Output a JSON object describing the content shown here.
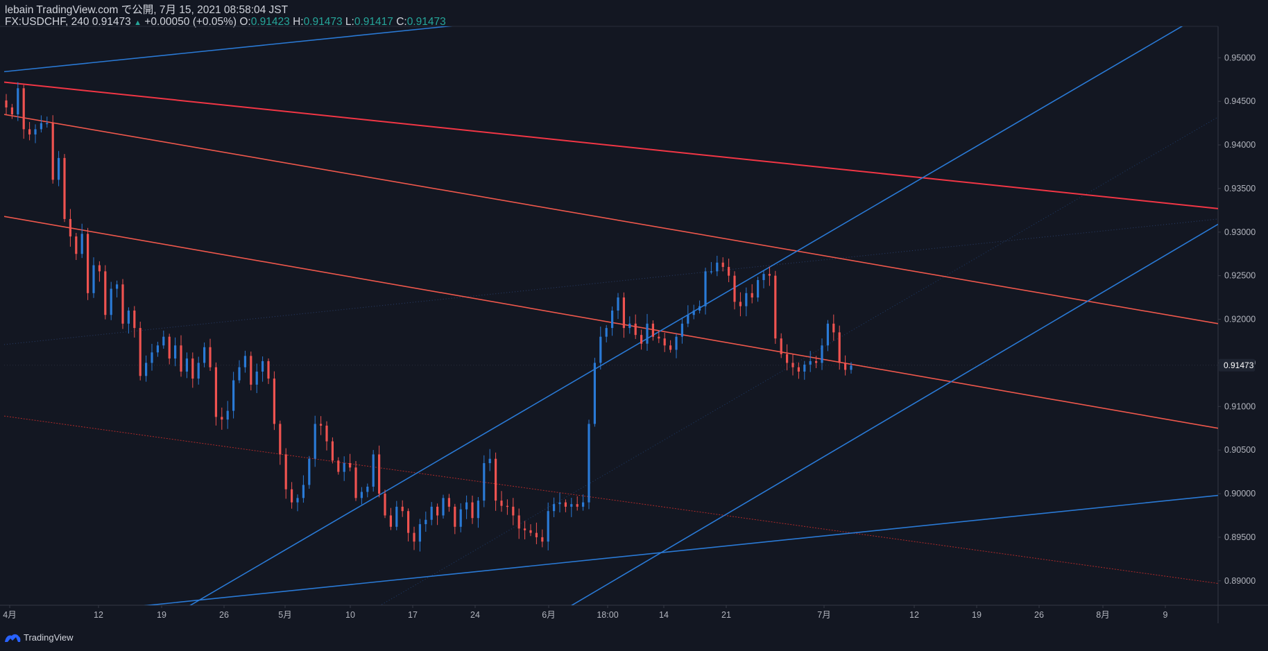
{
  "header": {
    "line1": "lebain TradingView.com で公開, 7月 15, 2021 08:58:04 JST",
    "symbol": "FX:USDCHF, 240",
    "last": "0.91473",
    "arrow": "▲",
    "change": "+0.00050 (+0.05%)",
    "o_label": "O:",
    "o": "0.91423",
    "h_label": "H:",
    "h": "0.91473",
    "l_label": "L:",
    "l": "0.91417",
    "c_label": "C:",
    "c": "0.91473"
  },
  "footer": {
    "brand": "TradingView"
  },
  "colors": {
    "background": "#131722",
    "up": "#2a7ad6",
    "down": "#ef5350",
    "trend_red": "#f23645",
    "trend_salmon": "#f0584c",
    "trend_blue": "#2a7ad6",
    "price_tag": "#1e2431"
  },
  "chart_data": {
    "type": "candlestick",
    "symbol": "FX:USDCHF",
    "interval": "240",
    "ylim": [
      0.8872,
      0.9536
    ],
    "y_ticks": [
      "0.95000",
      "0.94500",
      "0.94000",
      "0.93500",
      "0.93000",
      "0.92500",
      "0.92000",
      "0.91500",
      "0.91000",
      "0.90500",
      "0.90000",
      "0.89500",
      "0.89000"
    ],
    "x_ticks": [
      "4月",
      "12",
      "19",
      "26",
      "5月",
      "10",
      "17",
      "24",
      "6月",
      "18:00",
      "14",
      "21",
      "7月",
      "12",
      "19",
      "26",
      "8月",
      "9"
    ],
    "last_price": "0.91473",
    "series": [
      {
        "name": "USDCHF close",
        "values": [
          0.9443,
          0.9435,
          0.9465,
          0.9418,
          0.9412,
          0.9418,
          0.9425,
          0.9425,
          0.936,
          0.9385,
          0.9315,
          0.9295,
          0.9275,
          0.9298,
          0.923,
          0.9262,
          0.9255,
          0.9205,
          0.9235,
          0.924,
          0.9195,
          0.921,
          0.919,
          0.9135,
          0.915,
          0.9162,
          0.917,
          0.918,
          0.9155,
          0.917,
          0.914,
          0.9155,
          0.9132,
          0.915,
          0.9168,
          0.9145,
          0.9088,
          0.9085,
          0.9095,
          0.913,
          0.9145,
          0.9158,
          0.9125,
          0.914,
          0.9152,
          0.9132,
          0.908,
          0.9045,
          0.9005,
          0.899,
          0.8995,
          0.901,
          0.904,
          0.908,
          0.9078,
          0.906,
          0.9038,
          0.9025,
          0.9035,
          0.903,
          0.8995,
          0.9002,
          0.9008,
          0.9045,
          0.9,
          0.8975,
          0.8962,
          0.8985,
          0.898,
          0.8955,
          0.8945,
          0.8965,
          0.897,
          0.8985,
          0.8975,
          0.8995,
          0.8985,
          0.8962,
          0.8982,
          0.899,
          0.8972,
          0.8992,
          0.9035,
          0.904,
          0.8992,
          0.8986,
          0.8985,
          0.8975,
          0.896,
          0.8958,
          0.8955,
          0.895,
          0.8945,
          0.898,
          0.8988,
          0.899,
          0.8985,
          0.8988,
          0.8985,
          0.899,
          0.908,
          0.915,
          0.918,
          0.919,
          0.921,
          0.9225,
          0.919,
          0.9195,
          0.9182,
          0.9172,
          0.9195,
          0.918,
          0.9178,
          0.917,
          0.9165,
          0.918,
          0.9195,
          0.9205,
          0.921,
          0.9215,
          0.9255,
          0.9255,
          0.9265,
          0.926,
          0.925,
          0.922,
          0.9215,
          0.923,
          0.9225,
          0.9245,
          0.9252,
          0.925,
          0.9178,
          0.916,
          0.915,
          0.9145,
          0.914,
          0.9148,
          0.9152,
          0.915,
          0.917,
          0.9195,
          0.9185,
          0.915,
          0.9142,
          0.9147
        ]
      }
    ],
    "annotations": [
      {
        "name": "trend-red-top",
        "x0": 0,
        "y0": 0.9472,
        "x1": 175,
        "y1": 0.9327
      },
      {
        "name": "trend-salmon-upper",
        "x0": 0,
        "y0": 0.9435,
        "x1": 175,
        "y1": 0.9195
      },
      {
        "name": "trend-salmon-lower",
        "x0": 0,
        "y0": 0.9318,
        "x1": 175,
        "y1": 0.9075
      },
      {
        "name": "trend-red-dotted",
        "x0": 0,
        "y0": 0.9089,
        "x1": 175,
        "y1": 0.8897
      },
      {
        "name": "trend-blue-top",
        "x0": 0,
        "y0": 0.9484,
        "x1": 70,
        "y1": 0.9541
      },
      {
        "name": "trend-blue-channel-upper",
        "x0": 26,
        "y0": 0.8868,
        "x1": 170,
        "y1": 0.9537
      },
      {
        "name": "trend-blue-channel-lower",
        "x0": 81,
        "y0": 0.8868,
        "x1": 175,
        "y1": 0.9309
      },
      {
        "name": "trend-blue-bottom",
        "x0": 16,
        "y0": 0.8868,
        "x1": 175,
        "y1": 0.8998
      }
    ]
  }
}
